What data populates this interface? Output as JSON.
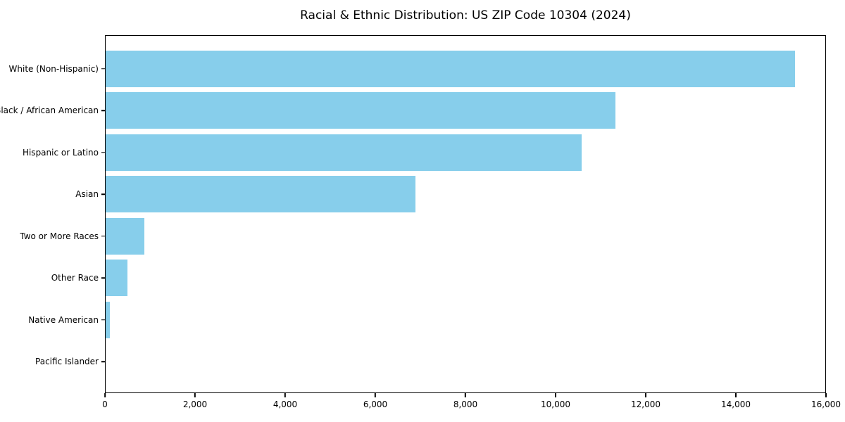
{
  "title": "Racial & Ethnic Distribution: US ZIP Code 10304 (2024)",
  "chart_data": {
    "type": "bar",
    "orientation": "horizontal",
    "title": "Racial & Ethnic Distribution: US ZIP Code 10304 (2024)",
    "xlabel": "",
    "ylabel": "",
    "categories": [
      "White (Non-Hispanic)",
      "Black / African American",
      "Hispanic or Latino",
      "Asian",
      "Two or More Races",
      "Other Race",
      "Native American",
      "Pacific Islander"
    ],
    "values": [
      15320,
      11340,
      10590,
      6890,
      860,
      480,
      90,
      0
    ],
    "xlim": [
      0,
      16000
    ],
    "xticks": [
      0,
      2000,
      4000,
      6000,
      8000,
      10000,
      12000,
      14000,
      16000
    ],
    "xtick_labels": [
      "0",
      "2,000",
      "4,000",
      "6,000",
      "8,000",
      "10,000",
      "12,000",
      "14,000",
      "16,000"
    ],
    "bar_color": "#87CEEB",
    "spine_color": "#000000",
    "background_color": "#ffffff",
    "grid": false,
    "legend": null
  }
}
